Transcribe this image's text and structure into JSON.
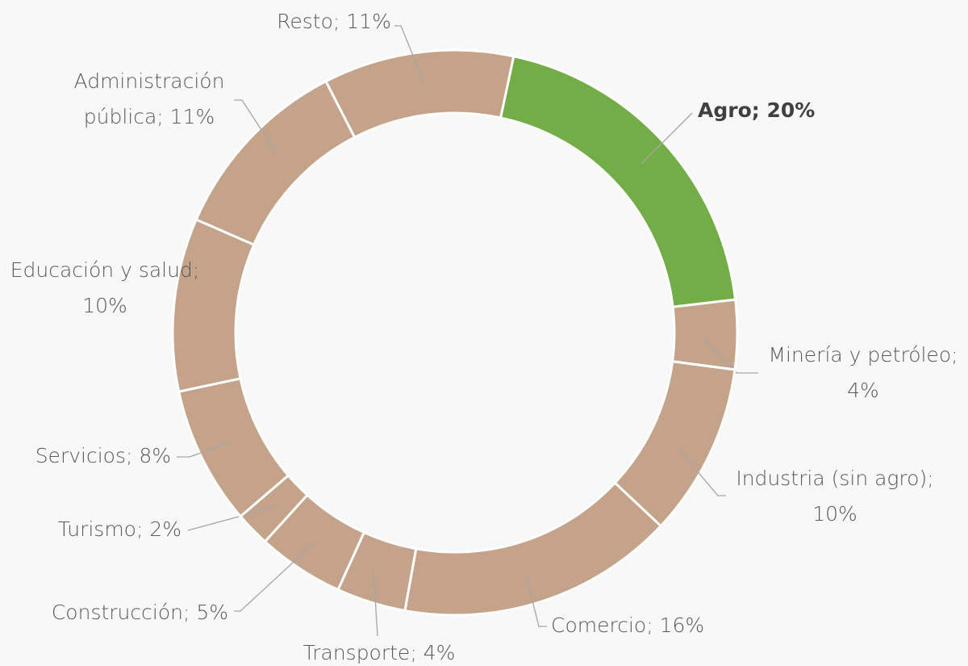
{
  "chart_data": {
    "type": "pie",
    "categories": [
      "Agro",
      "Minería y petróleo",
      "Industria (sin agro)",
      "Comercio",
      "Transporte",
      "Construcción",
      "Turismo",
      "Servicios",
      "Educación y salud",
      "Administración pública",
      "Resto"
    ],
    "values": [
      20,
      4,
      10,
      16,
      4,
      5,
      2,
      8,
      10,
      11,
      11
    ],
    "value_labels": [
      "Agro; 20%",
      "Minería y petróleo;\n4%",
      "Industria (sin agro);\n10%",
      "Comercio; 16%",
      "Transporte; 4%",
      "Construcción; 5%",
      "Turismo; 2%",
      "Servicios; 8%",
      "Educación y salud;\n10%",
      "Administración\npública; 11%",
      "Resto; 11%"
    ],
    "colors": [
      "#72ad47",
      "#c4a38a",
      "#c4a38a",
      "#c4a38a",
      "#c4a38a",
      "#c4a38a",
      "#c4a38a",
      "#c4a38a",
      "#c4a38a",
      "#c4a38a",
      "#c4a38a"
    ],
    "highlight": 0,
    "donut": true
  }
}
